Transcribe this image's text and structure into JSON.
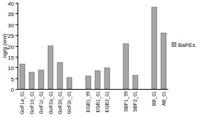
{
  "chart_data": {
    "type": "bar",
    "y_label": "ng/g (ww)",
    "categories": [
      "GoF1a_01",
      "GoF1b_01",
      "GoF1c_01",
      "GoF2a_01",
      "GoF2b_01",
      "GoF2c_01",
      null,
      "EGB1_99",
      "EGB1_01",
      "EGB2_01",
      null,
      "SBP1_99",
      "SBP2_01",
      null,
      "BB_01",
      "AB_01"
    ],
    "series": [
      {
        "name": "BaPEs",
        "color": "#a6a6a6",
        "values": [
          11.5,
          7.8,
          8.8,
          20,
          12.3,
          5.3,
          null,
          6,
          8.5,
          9.8,
          null,
          21,
          6.3,
          null,
          38,
          26
        ]
      }
    ],
    "ylim": [
      0,
      40
    ],
    "yticks": [
      0,
      5,
      10,
      15,
      20,
      25,
      30,
      35,
      40
    ],
    "grid": false,
    "legend": "right"
  }
}
